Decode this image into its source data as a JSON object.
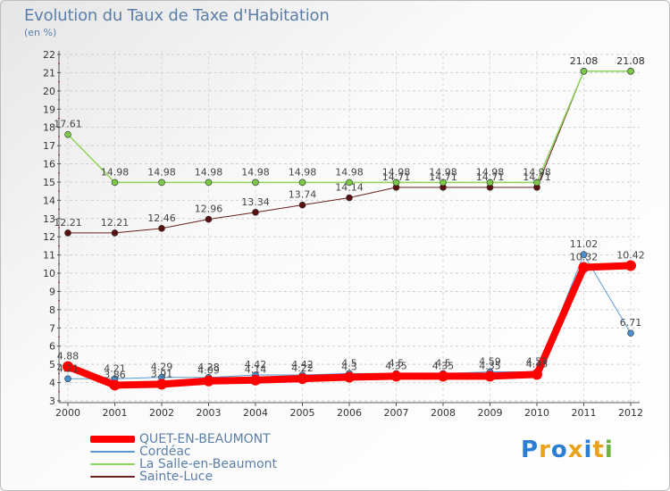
{
  "title": "Evolution du Taux de Taxe d'Habitation",
  "subtitle": "(en %)",
  "brand": {
    "text": "Proxiti",
    "letters": [
      {
        "ch": "P",
        "color": "#2a7fd4"
      },
      {
        "ch": "r",
        "color": "#e8a21c"
      },
      {
        "ch": "o",
        "color": "#2a7fd4"
      },
      {
        "ch": "x",
        "color": "#e8a21c"
      },
      {
        "ch": "i",
        "color": "#2a7fd4"
      },
      {
        "ch": "t",
        "color": "#e8a21c"
      },
      {
        "ch": "i",
        "color": "#6cb33f"
      }
    ]
  },
  "chart_data": {
    "type": "line",
    "title": "Evolution du Taux de Taxe d'Habitation",
    "ylabel": "(en %)",
    "xlabel": "",
    "ylim": [
      3,
      22
    ],
    "yticks": [
      3,
      4,
      5,
      6,
      7,
      8,
      9,
      10,
      11,
      12,
      13,
      14,
      15,
      16,
      17,
      18,
      19,
      20,
      21,
      22
    ],
    "grid": true,
    "legend_position": "bottom-left",
    "categories": [
      "2000",
      "2001",
      "2002",
      "2003",
      "2004",
      "2005",
      "2006",
      "2007",
      "2008",
      "2009",
      "2010",
      "2011",
      "2012"
    ],
    "series": [
      {
        "name": "Sainte-Luce",
        "color": "#6b1f1f",
        "marker": "#5a1010",
        "width": 1,
        "values": [
          12.21,
          12.21,
          12.46,
          12.96,
          13.34,
          13.74,
          14.14,
          14.71,
          14.71,
          14.71,
          14.71,
          21.08,
          21.08
        ],
        "labels": [
          "12.21",
          "12.21",
          "12.46",
          "12.96",
          "13.34",
          "13.74",
          "14.14",
          "14.71",
          "14.71",
          "14.71",
          "14.71",
          "21.08",
          "21.08"
        ]
      },
      {
        "name": "La Salle-en-Beaumont",
        "color": "#8ed65a",
        "marker": "#7cc94a",
        "width": 1.5,
        "values": [
          17.61,
          14.98,
          14.98,
          14.98,
          14.98,
          14.98,
          14.98,
          14.98,
          14.98,
          14.98,
          14.98,
          21.08,
          21.08
        ],
        "labels": [
          "17.61",
          "14.98",
          "14.98",
          "14.98",
          "14.98",
          "14.98",
          "14.98",
          "14.98",
          "14.98",
          "14.98",
          "14.98",
          "21.08",
          "21.08"
        ]
      },
      {
        "name": "Cordéac",
        "color": "#5a9ad4",
        "marker": "#4a8fd0",
        "width": 1,
        "values": [
          4.21,
          4.21,
          4.29,
          4.28,
          4.42,
          4.42,
          4.5,
          4.5,
          4.5,
          4.59,
          4.59,
          11.02,
          6.71
        ],
        "labels": [
          "4.21",
          "4.21",
          "4.29",
          "4.28",
          "4.42",
          "4.42",
          "4.5",
          "4.5",
          "4.5",
          "4.59",
          "4.59",
          "11.02",
          "6.71"
        ]
      },
      {
        "name": "QUET-EN-BEAUMONT",
        "color": "#ff0000",
        "marker": "#ff0000",
        "width": 8,
        "values": [
          4.88,
          3.86,
          3.91,
          4.09,
          4.14,
          4.22,
          4.3,
          4.35,
          4.35,
          4.35,
          4.45,
          10.32,
          10.42
        ],
        "labels": [
          "4.88",
          "3.86",
          "3.91",
          "4.09",
          "4.14",
          "4.22",
          "4.3",
          "4.35",
          "4.35",
          "4.35",
          "4.45",
          "10.32",
          "10.42"
        ]
      }
    ],
    "legend_order": [
      "QUET-EN-BEAUMONT",
      "Cordéac",
      "La Salle-en-Beaumont",
      "Sainte-Luce"
    ]
  }
}
